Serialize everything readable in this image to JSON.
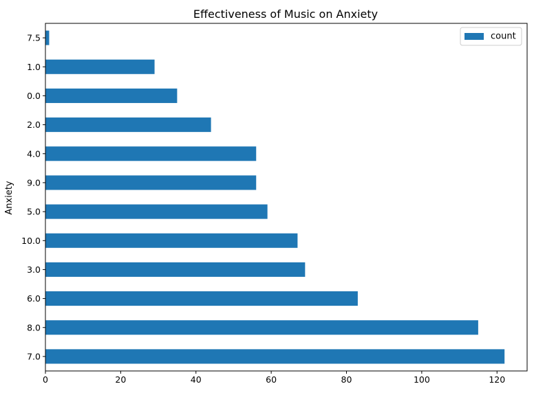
{
  "chart_data": {
    "type": "bar",
    "orientation": "horizontal",
    "title": "Effectiveness of Music on Anxiety",
    "xlabel": "",
    "ylabel": "Anxiety",
    "categories": [
      "7.5",
      "1.0",
      "0.0",
      "2.0",
      "4.0",
      "9.0",
      "5.0",
      "10.0",
      "3.0",
      "6.0",
      "8.0",
      "7.0"
    ],
    "series": [
      {
        "name": "count",
        "color": "#1f77b4",
        "values": [
          1,
          29,
          35,
          44,
          56,
          56,
          59,
          67,
          69,
          83,
          115,
          122
        ]
      }
    ],
    "xlim": [
      0,
      128
    ],
    "xticks": [
      0,
      20,
      40,
      60,
      80,
      100,
      120
    ],
    "grid": false,
    "legend": "top-right"
  }
}
